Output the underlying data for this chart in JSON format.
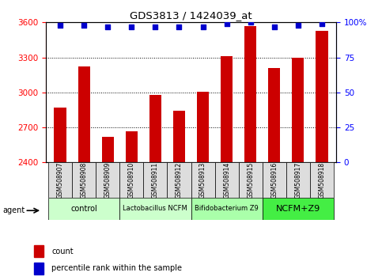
{
  "title": "GDS3813 / 1424039_at",
  "samples": [
    "GSM508907",
    "GSM508908",
    "GSM508909",
    "GSM508910",
    "GSM508911",
    "GSM508912",
    "GSM508913",
    "GSM508914",
    "GSM508915",
    "GSM508916",
    "GSM508917",
    "GSM508918"
  ],
  "counts": [
    2870,
    3220,
    2620,
    2665,
    2980,
    2840,
    3005,
    3310,
    3570,
    3210,
    3295,
    3530
  ],
  "percentile_ranks": [
    98,
    98,
    97,
    97,
    97,
    97,
    97,
    99,
    100,
    97,
    98,
    99
  ],
  "bar_color": "#cc0000",
  "dot_color": "#0000cc",
  "ylim_left": [
    2400,
    3600
  ],
  "ylim_right": [
    0,
    100
  ],
  "yticks_left": [
    2400,
    2700,
    3000,
    3300,
    3600
  ],
  "yticks_right": [
    0,
    25,
    50,
    75,
    100
  ],
  "groups": [
    {
      "label": "control",
      "start": 0,
      "end": 3,
      "color": "#ccffcc"
    },
    {
      "label": "Lactobacillus NCFM",
      "start": 3,
      "end": 6,
      "color": "#ccffcc"
    },
    {
      "label": "Bifidobacterium Z9",
      "start": 6,
      "end": 9,
      "color": "#aaffaa"
    },
    {
      "label": "NCFM+Z9",
      "start": 9,
      "end": 12,
      "color": "#44ee44"
    }
  ],
  "group_font_sizes": [
    7,
    6,
    6,
    8
  ],
  "agent_label": "agent",
  "legend_count_label": "count",
  "legend_percentile_label": "percentile rank within the sample"
}
